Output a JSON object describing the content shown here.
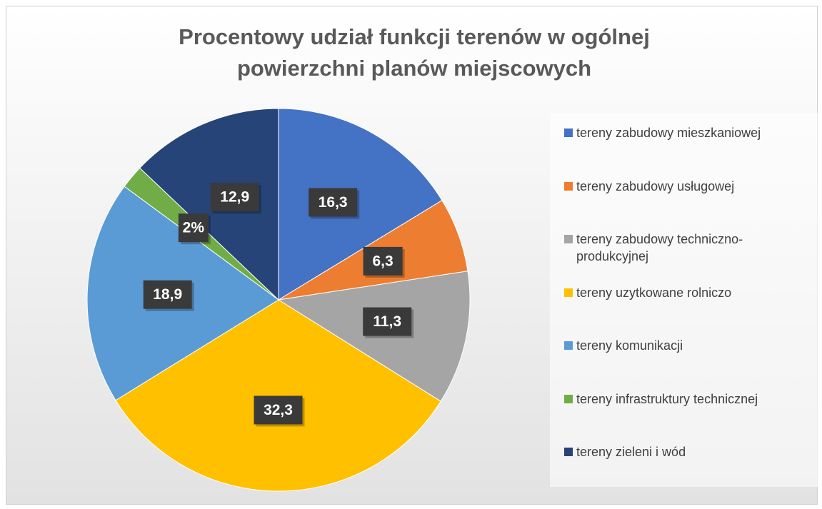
{
  "chart_data": {
    "type": "pie",
    "title": "Procentowy udział  funkcji terenów  w ogólnej powierzchni planów miejscowych",
    "categories": [
      "tereny zabudowy mieszkaniowej",
      "tereny zabudowy usługowej",
      "tereny zabudowy techniczno-produkcyjnej",
      "tereny uzytkowane rolniczo",
      "tereny komunikacji",
      "tereny infrastruktury technicznej",
      "tereny zieleni i wód"
    ],
    "values": [
      16.3,
      6.3,
      11.3,
      32.3,
      18.9,
      2,
      12.9
    ],
    "value_labels": [
      "16,3",
      "6,3",
      "11,3",
      "32,3",
      "18,9",
      "2%",
      "12,9"
    ],
    "colors": [
      "#4472c4",
      "#ed7d31",
      "#a5a5a5",
      "#ffc000",
      "#5b9bd5",
      "#70ad47",
      "#264478"
    ],
    "legend": "right"
  }
}
